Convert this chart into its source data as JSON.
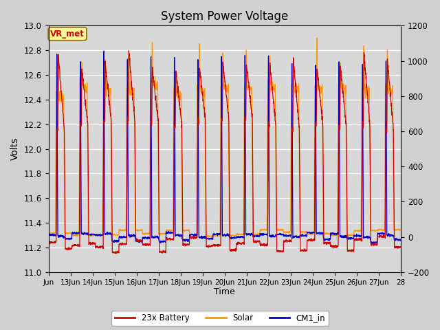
{
  "title": "System Power Voltage",
  "xlabel": "Time",
  "ylabel": "Volts",
  "ylim_left": [
    11.0,
    13.0
  ],
  "ylim_right": [
    -200,
    1200
  ],
  "yticks_left": [
    11.0,
    11.2,
    11.4,
    11.6,
    11.8,
    12.0,
    12.2,
    12.4,
    12.6,
    12.8,
    13.0
  ],
  "yticks_right": [
    -200,
    0,
    200,
    400,
    600,
    800,
    1000,
    1200
  ],
  "xtick_labels": [
    "Jun",
    "13Jun",
    "14Jun",
    "15Jun",
    "16Jun",
    "17Jun",
    "18Jun",
    "19Jun",
    "20Jun",
    "21Jun",
    "22Jun",
    "23Jun",
    "24Jun",
    "25Jun",
    "26Jun",
    "27Jun",
    "28"
  ],
  "n_days": 15,
  "battery_color": "#CC0000",
  "solar_color": "#FF9900",
  "cm1_color": "#0000CC",
  "annotation_text": "VR_met",
  "annotation_bg": "#FFFF99",
  "annotation_border": "#996600",
  "annotation_text_color": "#CC0000",
  "legend_labels": [
    "23x Battery",
    "Solar",
    "CM1_in"
  ],
  "bg_color": "#D8D8D8",
  "grid_color": "#FFFFFF",
  "figsize": [
    6.4,
    4.8
  ],
  "dpi": 100
}
